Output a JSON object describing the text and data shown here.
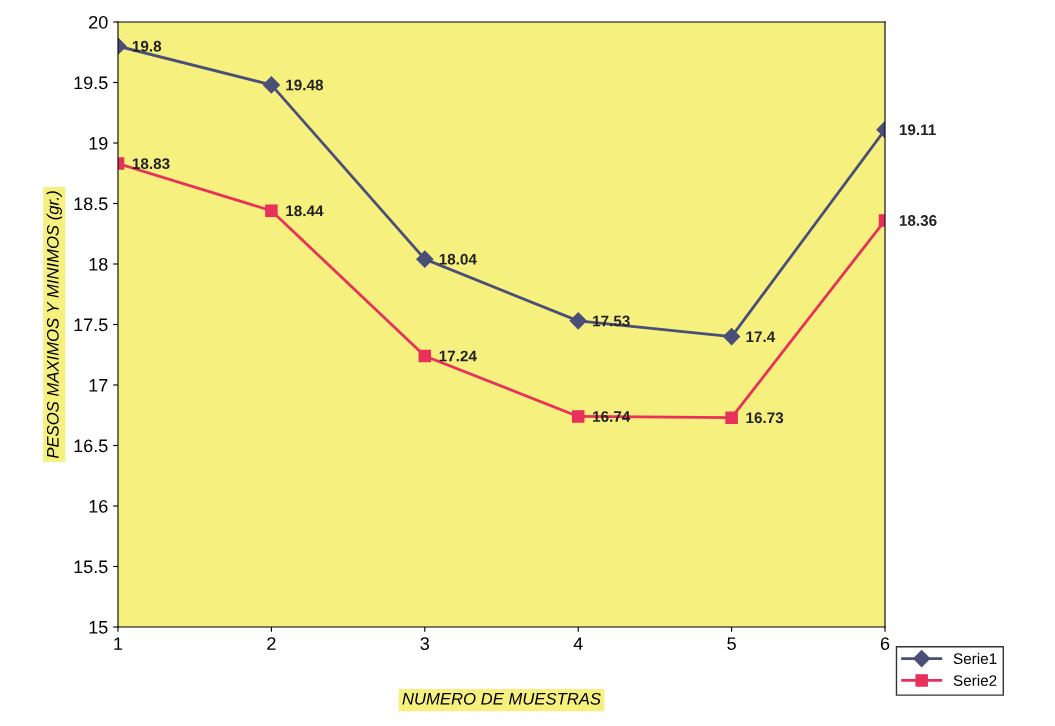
{
  "chart_data": {
    "type": "line",
    "xlabel": "NUMERO DE MUESTRAS",
    "ylabel": "PESOS MAXIMOS Y MINIMOS (gr.)",
    "x": [
      1,
      2,
      3,
      4,
      5,
      6
    ],
    "xlim": [
      1,
      6
    ],
    "xticks": [
      1,
      2,
      3,
      4,
      5,
      6
    ],
    "ylim": [
      15,
      20
    ],
    "yticks": [
      15,
      15.5,
      16,
      16.5,
      17,
      17.5,
      18,
      18.5,
      19,
      19.5,
      20
    ],
    "series": [
      {
        "name": "Serie1",
        "color": "#4a4f78",
        "marker": "diamond",
        "values": [
          19.8,
          19.48,
          18.04,
          17.53,
          17.4,
          19.11
        ]
      },
      {
        "name": "Serie2",
        "color": "#e8305a",
        "marker": "square",
        "values": [
          18.83,
          18.44,
          17.24,
          16.74,
          16.73,
          18.36
        ]
      }
    ],
    "data_labels": true,
    "grid": false,
    "legend": "bottom right",
    "line_style": "solid"
  }
}
